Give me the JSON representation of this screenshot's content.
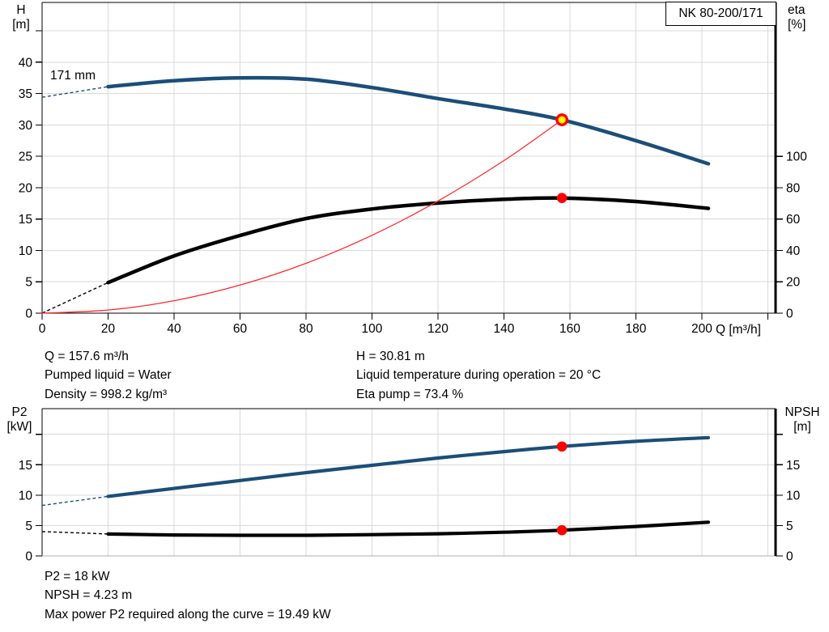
{
  "colors": {
    "curve_blue": "#1b4e79",
    "curve_black": "#000000",
    "system_red": "#ff2a2a",
    "marker_red": "#ff0000",
    "marker_yellow": "#ffff00",
    "grid": "#d9d9d9"
  },
  "info_top": {
    "col1": [
      "Q = 157.6 m³/h",
      "Pumped liquid = Water",
      "Density = 998.2 kg/m³"
    ],
    "col2": [
      "H = 30.81 m",
      "Liquid temperature during operation = 20 °C",
      "Eta pump = 73.4 %"
    ]
  },
  "info_bottom": [
    "P2 = 18 kW",
    "NPSH = 4.23 m",
    "Max power P2 required along the curve = 19.49 kW"
  ],
  "chart_data": [
    {
      "type": "line",
      "title": "NK 80-200/171",
      "impeller": "171 mm",
      "xlabel": "Q [m³/h]",
      "x_axis": {
        "range": [
          0,
          222.36
        ],
        "ticks": [
          {
            "v": 0,
            "l": "0"
          },
          {
            "v": 20,
            "l": "20"
          },
          {
            "v": 40,
            "l": "40"
          },
          {
            "v": 60,
            "l": "60"
          },
          {
            "v": 80,
            "l": "80"
          },
          {
            "v": 100,
            "l": "100"
          },
          {
            "v": 120,
            "l": "120"
          },
          {
            "v": 140,
            "l": "140"
          },
          {
            "v": 160,
            "l": "160"
          },
          {
            "v": 180,
            "l": "180"
          },
          {
            "v": 200,
            "l": "200"
          },
          {
            "v": 220,
            "l": ""
          }
        ]
      },
      "left_axis": {
        "title": [
          "H",
          "[m]"
        ],
        "range": [
          0,
          49.52
        ],
        "ticks": [
          {
            "v": 0,
            "l": "0"
          },
          {
            "v": 5,
            "l": "5"
          },
          {
            "v": 10,
            "l": "10"
          },
          {
            "v": 15,
            "l": "15"
          },
          {
            "v": 20,
            "l": "20"
          },
          {
            "v": 25,
            "l": "25"
          },
          {
            "v": 30,
            "l": "30"
          },
          {
            "v": 35,
            "l": "35"
          },
          {
            "v": 40,
            "l": "40"
          },
          {
            "v": 45,
            "l": ""
          }
        ]
      },
      "right_axis": {
        "title": [
          "eta",
          "[%]"
        ],
        "range": [
          0,
          198.1
        ],
        "ticks": [
          {
            "v": 0,
            "l": "0"
          },
          {
            "v": 20,
            "l": "20"
          },
          {
            "v": 40,
            "l": "40"
          },
          {
            "v": 60,
            "l": "60"
          },
          {
            "v": 80,
            "l": "80"
          },
          {
            "v": 100,
            "l": "100"
          }
        ]
      },
      "series": [
        {
          "name": "head-curve",
          "axis": "left",
          "color": "#1b4e79",
          "width": 4.5,
          "dash_split_q": 20,
          "points": [
            [
              0,
              34.4
            ],
            [
              20,
              36.1
            ],
            [
              40,
              37.05
            ],
            [
              60,
              37.5
            ],
            [
              80,
              37.3
            ],
            [
              100,
              35.95
            ],
            [
              120,
              34.2
            ],
            [
              140,
              32.55
            ],
            [
              157.6,
              30.81
            ],
            [
              180,
              27.5
            ],
            [
              202,
              23.8
            ]
          ]
        },
        {
          "name": "efficiency-curve",
          "axis": "right",
          "color": "#000000",
          "width": 4.5,
          "dash_split_q": 20,
          "points": [
            [
              0,
              0
            ],
            [
              20,
              19.5
            ],
            [
              40,
              36.5
            ],
            [
              60,
              49.5
            ],
            [
              80,
              60.3
            ],
            [
              100,
              66.4
            ],
            [
              120,
              70.2
            ],
            [
              140,
              72.6
            ],
            [
              157.6,
              73.4
            ],
            [
              180,
              71.2
            ],
            [
              202,
              66.8
            ]
          ]
        },
        {
          "name": "system-curve",
          "axis": "left",
          "color": "#ff2a2a",
          "width": 1.3,
          "points": [
            [
              0,
              0
            ],
            [
              20,
              0.5
            ],
            [
              40,
              1.98
            ],
            [
              60,
              4.47
            ],
            [
              80,
              7.94
            ],
            [
              100,
              12.4
            ],
            [
              120,
              17.87
            ],
            [
              140,
              24.31
            ],
            [
              157.6,
              30.81
            ]
          ]
        }
      ],
      "markers": [
        {
          "name": "duty-point",
          "axis": "left",
          "q": 157.6,
          "v": 30.81,
          "style": "duty"
        },
        {
          "name": "efficiency-point",
          "axis": "right",
          "q": 157.6,
          "v": 73.4,
          "style": "dot"
        }
      ]
    },
    {
      "type": "line",
      "title": "",
      "xlabel": "",
      "x_axis": {
        "range": [
          0,
          222.36
        ],
        "ticks": [
          {
            "v": 20,
            "l": ""
          },
          {
            "v": 40,
            "l": ""
          },
          {
            "v": 60,
            "l": ""
          },
          {
            "v": 80,
            "l": ""
          },
          {
            "v": 100,
            "l": ""
          },
          {
            "v": 120,
            "l": ""
          },
          {
            "v": 140,
            "l": ""
          },
          {
            "v": 160,
            "l": ""
          },
          {
            "v": 180,
            "l": ""
          },
          {
            "v": 200,
            "l": ""
          },
          {
            "v": 220,
            "l": ""
          }
        ]
      },
      "left_axis": {
        "title": [
          "P2",
          "[kW]"
        ],
        "range": [
          0,
          24.22
        ],
        "ticks": [
          {
            "v": 0,
            "l": "0"
          },
          {
            "v": 5,
            "l": "5"
          },
          {
            "v": 10,
            "l": "10"
          },
          {
            "v": 15,
            "l": "15"
          },
          {
            "v": 20,
            "l": ""
          }
        ]
      },
      "right_axis": {
        "title": [
          "NPSH",
          "[m]"
        ],
        "range": [
          0,
          24.22
        ],
        "ticks": [
          {
            "v": 0,
            "l": "0"
          },
          {
            "v": 5,
            "l": "5"
          },
          {
            "v": 10,
            "l": "10"
          },
          {
            "v": 15,
            "l": "15"
          },
          {
            "v": 20,
            "l": ""
          }
        ]
      },
      "series": [
        {
          "name": "p2-curve",
          "axis": "left",
          "color": "#1b4e79",
          "width": 4.2,
          "dash_split_q": 20,
          "points": [
            [
              0,
              8.3
            ],
            [
              20,
              9.8
            ],
            [
              40,
              11.1
            ],
            [
              60,
              12.4
            ],
            [
              80,
              13.7
            ],
            [
              100,
              14.9
            ],
            [
              120,
              16.1
            ],
            [
              140,
              17.15
            ],
            [
              157.6,
              18.0
            ],
            [
              180,
              18.85
            ],
            [
              202,
              19.45
            ]
          ]
        },
        {
          "name": "npsh-curve",
          "axis": "right",
          "color": "#000000",
          "width": 4.2,
          "dash_split_q": 20,
          "points": [
            [
              0,
              4.0
            ],
            [
              20,
              3.6
            ],
            [
              40,
              3.45
            ],
            [
              60,
              3.4
            ],
            [
              80,
              3.4
            ],
            [
              100,
              3.5
            ],
            [
              120,
              3.65
            ],
            [
              140,
              3.9
            ],
            [
              157.6,
              4.23
            ],
            [
              180,
              4.85
            ],
            [
              202,
              5.55
            ]
          ]
        }
      ],
      "markers": [
        {
          "name": "p2-point",
          "axis": "left",
          "q": 157.6,
          "v": 18.0,
          "style": "dot"
        },
        {
          "name": "npsh-point",
          "axis": "right",
          "q": 157.6,
          "v": 4.23,
          "style": "dot"
        }
      ]
    }
  ]
}
